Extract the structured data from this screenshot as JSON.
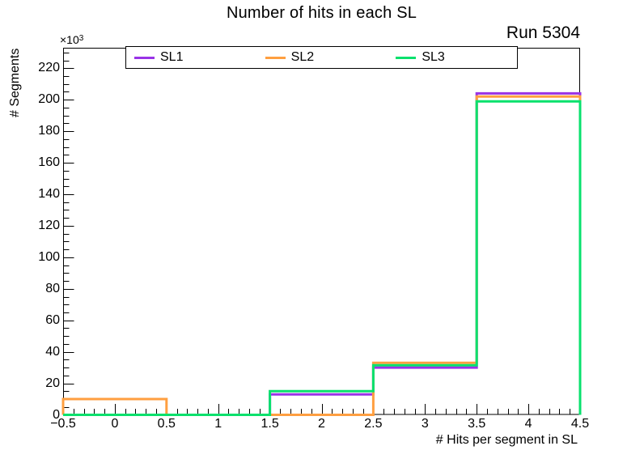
{
  "title": "Number of hits in each SL",
  "run_label": "Run 5304",
  "y_axis": {
    "title": "# Segments",
    "exponent_mantissa": "×10",
    "exponent_power": "3",
    "tick_labels": [
      "0",
      "20",
      "40",
      "60",
      "80",
      "100",
      "120",
      "140",
      "160",
      "180",
      "200",
      "220"
    ]
  },
  "x_axis": {
    "title": "# Hits per segment in SL",
    "tick_labels": [
      "−0.5",
      "0",
      "0.5",
      "1",
      "1.5",
      "2",
      "2.5",
      "3",
      "3.5",
      "4",
      "4.5"
    ]
  },
  "legend": {
    "entries": [
      {
        "label": "SL1",
        "color": "#9933e6"
      },
      {
        "label": "SL2",
        "color": "#ff9f40"
      },
      {
        "label": "SL3",
        "color": "#09e16d"
      }
    ]
  },
  "chart_data": {
    "type": "step-histogram",
    "title": "Number of hits in each SL",
    "xlabel": "# Hits per segment in SL",
    "ylabel": "# Segments",
    "y_unit": "×10³ segments",
    "x_edges": [
      -0.5,
      0.5,
      1.5,
      2.5,
      3.5,
      4.5
    ],
    "series": [
      {
        "name": "SL1",
        "color": "#9933e6",
        "values_k": [
          0,
          0,
          13,
          30,
          204
        ]
      },
      {
        "name": "SL2",
        "color": "#ff9f40",
        "values_k": [
          10,
          0,
          0,
          33,
          202
        ]
      },
      {
        "name": "SL3",
        "color": "#09e16d",
        "values_k": [
          0,
          0,
          15,
          31.5,
          199
        ]
      }
    ],
    "xlim": [
      -0.5,
      4.5
    ],
    "ylim_k": [
      0,
      233
    ],
    "x_major_step": 0.5,
    "x_minor_step": 0.1,
    "y_major_step_k": 20,
    "y_minor_step_k": 5,
    "grid": false,
    "legend_position": "top"
  }
}
